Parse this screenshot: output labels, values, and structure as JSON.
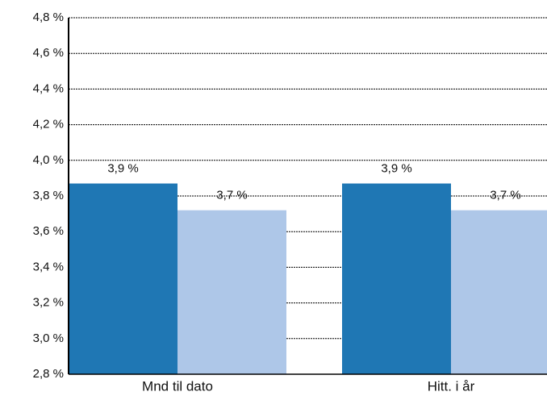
{
  "chart_data": {
    "type": "bar",
    "categories": [
      "Mnd til dato",
      "Hitt. i år"
    ],
    "series": [
      {
        "color": "#1f77b4",
        "values": [
          3.87,
          3.87
        ],
        "value_labels": [
          "3,9 %",
          "3,9 %"
        ]
      },
      {
        "color": "#aec7e8",
        "values": [
          3.72,
          3.72
        ],
        "value_labels": [
          "3,7 %",
          "3,7 %"
        ]
      }
    ],
    "ylim": [
      2.8,
      4.8
    ],
    "yticks": [
      {
        "value": 2.8,
        "label": "2,8 %"
      },
      {
        "value": 3.0,
        "label": "3,0 %"
      },
      {
        "value": 3.2,
        "label": "3,2 %"
      },
      {
        "value": 3.4,
        "label": "3,4 %"
      },
      {
        "value": 3.6,
        "label": "3,6 %"
      },
      {
        "value": 3.8,
        "label": "3,8 %"
      },
      {
        "value": 4.0,
        "label": "4,0 %"
      },
      {
        "value": 4.2,
        "label": "4,2 %"
      },
      {
        "value": 4.4,
        "label": "4,4 %"
      },
      {
        "value": 4.6,
        "label": "4,6 %"
      },
      {
        "value": 4.8,
        "label": "4,8 %"
      }
    ],
    "grid": true
  }
}
